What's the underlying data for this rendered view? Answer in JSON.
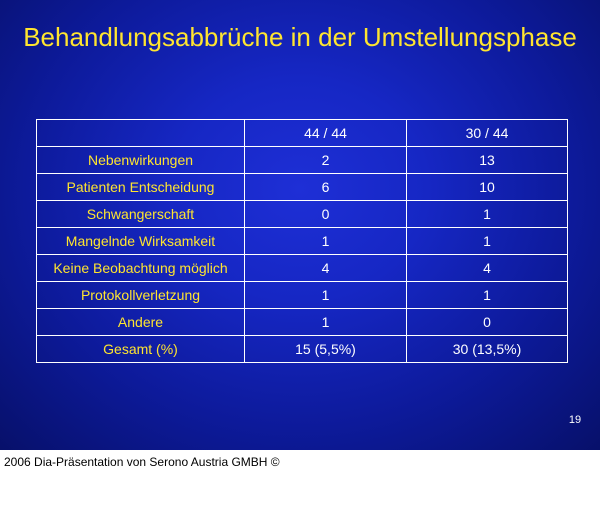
{
  "slide": {
    "title": "Behandlungsabbrüche in der Umstellungsphase",
    "page_number": "19",
    "background_color": "#1627c4",
    "title_color": "#ffe52f"
  },
  "table": {
    "columns": [
      "",
      "44 / 44",
      "30 / 44"
    ],
    "rows": [
      {
        "label": "Nebenwirkungen",
        "col1": "2",
        "col2": "13"
      },
      {
        "label": "Patienten Entscheidung",
        "col1": "6",
        "col2": "10"
      },
      {
        "label": "Schwangerschaft",
        "col1": "0",
        "col2": "1"
      },
      {
        "label": "Mangelnde Wirksamkeit",
        "col1": "1",
        "col2": "1"
      },
      {
        "label": "Keine Beobachtung möglich",
        "col1": "4",
        "col2": "4"
      },
      {
        "label": "Protokollverletzung",
        "col1": "1",
        "col2": "1"
      },
      {
        "label": "Andere",
        "col1": "1",
        "col2": "0"
      },
      {
        "label": "Gesamt (%)",
        "col1": "15 (5,5%)",
        "col2": "30 (13,5%)"
      }
    ]
  },
  "footer": {
    "text": "2006 Dia-Präsentation von Serono Austria GMBH ©"
  }
}
